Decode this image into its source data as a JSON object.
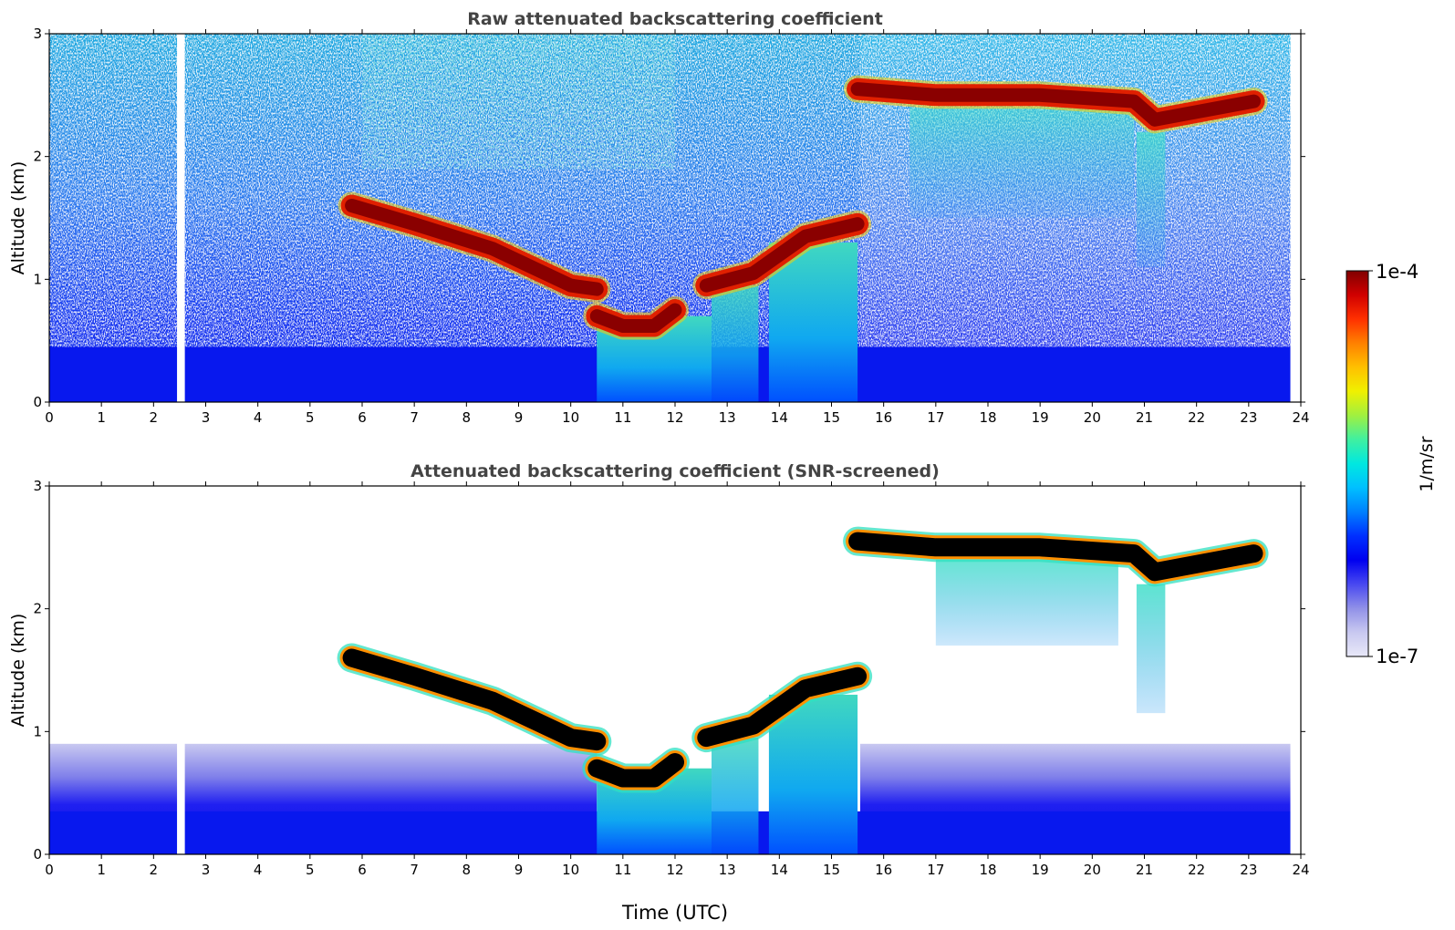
{
  "figure": {
    "xlabel": "Time (UTC)",
    "colorbar": {
      "label": "1/m/sr",
      "max_label": "1e-4",
      "min_label": "1e-7",
      "colors": [
        "#e8e8f8",
        "#c8c8f0",
        "#9090e8",
        "#4848f0",
        "#0000f0",
        "#0030ff",
        "#0080ff",
        "#00c0ff",
        "#00e8e0",
        "#40f0a0",
        "#a0f040",
        "#f0f000",
        "#ffc000",
        "#ff8000",
        "#ff3000",
        "#d00000",
        "#800000"
      ]
    }
  },
  "chart_data": [
    {
      "type": "heatmap",
      "title": "Raw attenuated backscattering coefficient",
      "xlabel": "",
      "ylabel": "Altitude (km)",
      "xlim": [
        0,
        24
      ],
      "ylim": [
        0,
        3
      ],
      "xticks": [
        "0",
        "1",
        "2",
        "3",
        "4",
        "5",
        "6",
        "7",
        "8",
        "9",
        "10",
        "11",
        "12",
        "13",
        "14",
        "15",
        "16",
        "17",
        "18",
        "19",
        "20",
        "21",
        "22",
        "23",
        "24"
      ],
      "yticks": [
        "0",
        "1",
        "2",
        "3"
      ],
      "data_gap_utc": [
        2.45,
        2.6
      ],
      "data_end_utc": 23.8,
      "cloud_layers": [
        {
          "name": "descending layer",
          "points": [
            [
              5.8,
              1.6
            ],
            [
              7.0,
              1.45
            ],
            [
              8.5,
              1.25
            ],
            [
              10.0,
              0.95
            ],
            [
              10.5,
              0.92
            ]
          ]
        },
        {
          "name": "low layer",
          "points": [
            [
              10.5,
              0.7
            ],
            [
              11.0,
              0.62
            ],
            [
              11.6,
              0.62
            ],
            [
              12.0,
              0.75
            ]
          ]
        },
        {
          "name": "rising layer",
          "points": [
            [
              12.6,
              0.95
            ],
            [
              13.5,
              1.05
            ],
            [
              14.5,
              1.35
            ],
            [
              15.5,
              1.45
            ]
          ]
        },
        {
          "name": "upper layer",
          "points": [
            [
              15.5,
              2.55
            ],
            [
              17.0,
              2.5
            ],
            [
              19.0,
              2.5
            ],
            [
              20.8,
              2.45
            ],
            [
              21.2,
              2.3
            ],
            [
              23.1,
              2.45
            ]
          ]
        }
      ]
    },
    {
      "type": "heatmap",
      "title": "Attenuated backscattering coefficient (SNR-screened)",
      "xlabel": "Time (UTC)",
      "ylabel": "Altitude (km)",
      "xlim": [
        0,
        24
      ],
      "ylim": [
        0,
        3
      ],
      "xticks": [
        "0",
        "1",
        "2",
        "3",
        "4",
        "5",
        "6",
        "7",
        "8",
        "9",
        "10",
        "11",
        "12",
        "13",
        "14",
        "15",
        "16",
        "17",
        "18",
        "19",
        "20",
        "21",
        "22",
        "23",
        "24"
      ],
      "yticks": [
        "0",
        "1",
        "2",
        "3"
      ],
      "data_gap_utc": [
        2.45,
        2.6
      ],
      "data_end_utc": 23.8,
      "cloud_layers": [
        {
          "name": "descending layer",
          "points": [
            [
              5.8,
              1.6
            ],
            [
              7.0,
              1.45
            ],
            [
              8.5,
              1.25
            ],
            [
              10.0,
              0.95
            ],
            [
              10.5,
              0.92
            ]
          ]
        },
        {
          "name": "low layer",
          "points": [
            [
              10.5,
              0.7
            ],
            [
              11.0,
              0.62
            ],
            [
              11.6,
              0.62
            ],
            [
              12.0,
              0.75
            ]
          ]
        },
        {
          "name": "rising layer",
          "points": [
            [
              12.6,
              0.95
            ],
            [
              13.5,
              1.05
            ],
            [
              14.5,
              1.35
            ],
            [
              15.5,
              1.45
            ]
          ]
        },
        {
          "name": "upper layer",
          "points": [
            [
              15.5,
              2.55
            ],
            [
              17.0,
              2.5
            ],
            [
              19.0,
              2.5
            ],
            [
              20.8,
              2.45
            ],
            [
              21.2,
              2.3
            ],
            [
              23.1,
              2.45
            ]
          ]
        }
      ]
    }
  ]
}
